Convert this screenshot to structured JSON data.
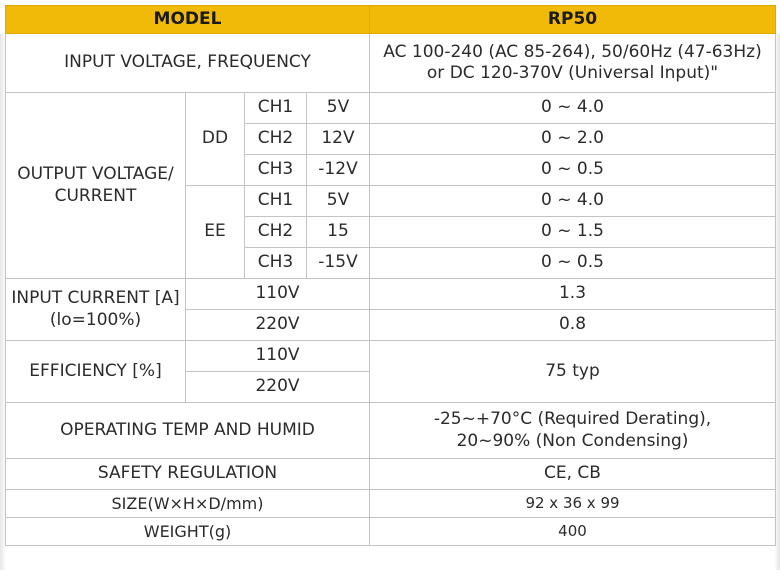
{
  "header": {
    "model_label": "MODEL",
    "model_value": "RP50"
  },
  "input_voltage": {
    "label": "INPUT VOLTAGE, FREQUENCY",
    "value_line1": "AC 100-240 (AC 85-264), 50/60Hz (47-63Hz)",
    "value_line2": "or DC 120-370V (Universal Input)\""
  },
  "output": {
    "label_line1": "OUTPUT VOLTAGE/",
    "label_line2": "CURRENT",
    "groups": [
      {
        "name": "DD",
        "channels": [
          {
            "ch": "CH1",
            "voltage": "5V",
            "current": "0 ~ 4.0"
          },
          {
            "ch": "CH2",
            "voltage": "12V",
            "current": "0 ~ 2.0"
          },
          {
            "ch": "CH3",
            "voltage": "-12V",
            "current": "0 ~ 0.5"
          }
        ]
      },
      {
        "name": "EE",
        "channels": [
          {
            "ch": "CH1",
            "voltage": "5V",
            "current": "0 ~ 4.0"
          },
          {
            "ch": "CH2",
            "voltage": "15",
            "current": "0 ~ 1.5"
          },
          {
            "ch": "CH3",
            "voltage": "-15V",
            "current": "0 ~ 0.5"
          }
        ]
      }
    ]
  },
  "input_current": {
    "label_line1": "INPUT CURRENT [A]",
    "label_line2": "(lo=100%)",
    "rows": [
      {
        "voltage": "110V",
        "value": "1.3"
      },
      {
        "voltage": "220V",
        "value": "0.8"
      }
    ]
  },
  "efficiency": {
    "label": "EFFICIENCY [%]",
    "rows": [
      {
        "voltage": "110V"
      },
      {
        "voltage": "220V"
      }
    ],
    "value": "75 typ"
  },
  "operating": {
    "label": "OPERATING TEMP AND HUMID",
    "value_line1": "-25~+70°C (Required Derating),",
    "value_line2": "20~90% (Non Condensing)"
  },
  "safety": {
    "label": "SAFETY REGULATION",
    "value": "CE, CB"
  },
  "size": {
    "label": "SIZE(W×H×D/mm)",
    "value": "92 x 36 x 99"
  },
  "weight": {
    "label": "WEIGHT(g)",
    "value": "400"
  },
  "colors": {
    "header_bg": "#f2ba08",
    "border": "#c4c4c4",
    "text": "#2b2b2b"
  }
}
